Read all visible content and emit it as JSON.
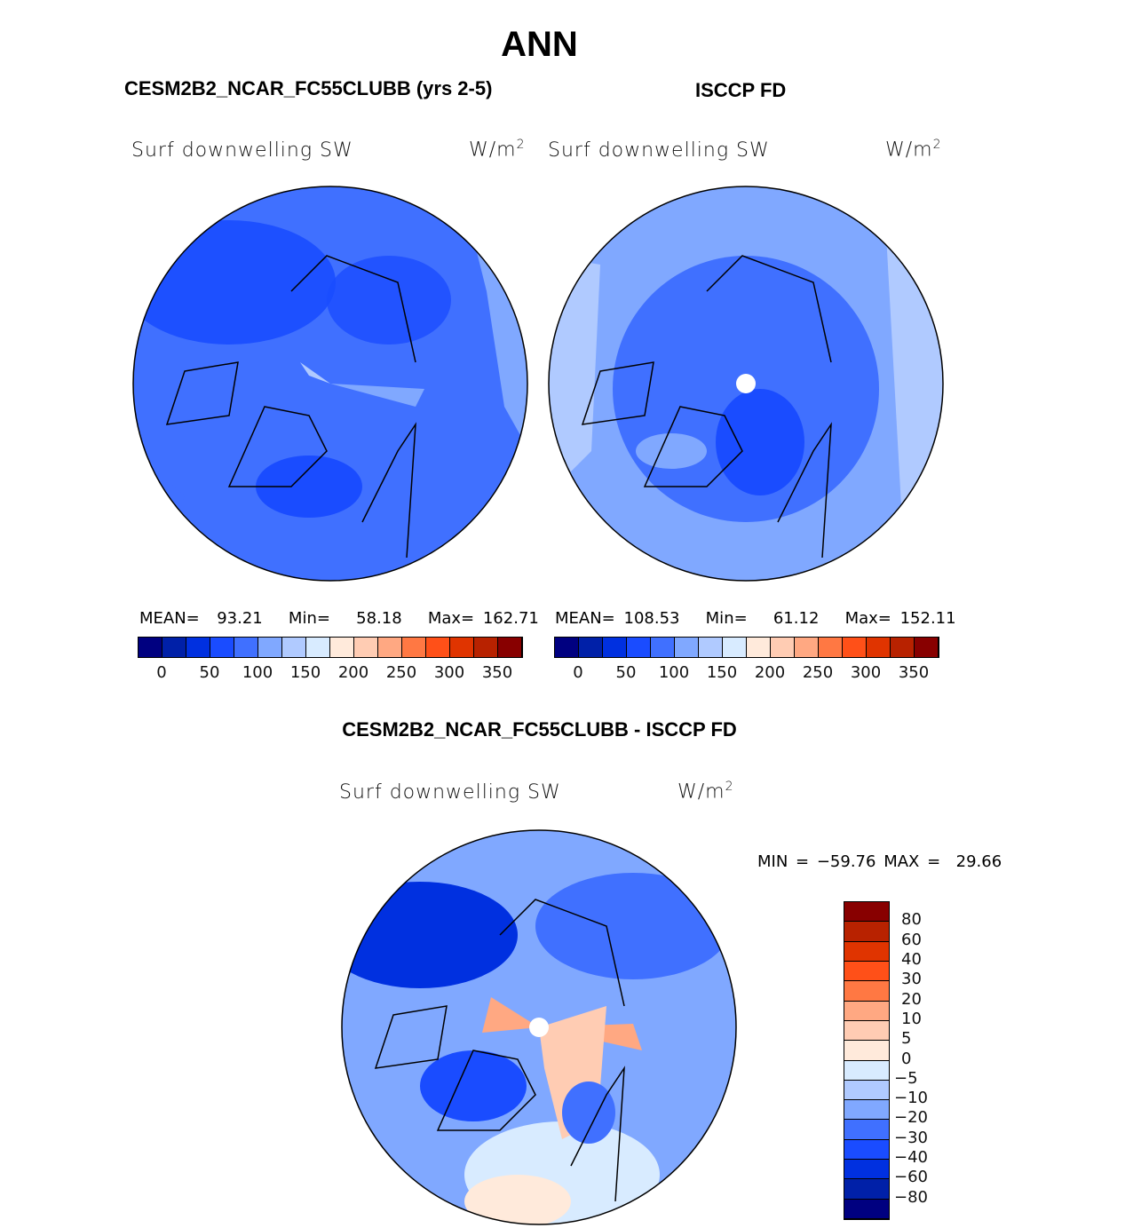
{
  "title": "ANN",
  "panels": [
    {
      "header": "CESM2B2_NCAR_FC55CLUBB (yrs 2-5)",
      "variable": "Surf downwelling SW",
      "units": "W/m",
      "units_sup": "2",
      "stats": {
        "mean_label": "MEAN=",
        "mean": "93.21",
        "min_label": "Min=",
        "min": "58.18",
        "max_label": "Max=",
        "max": "162.71"
      }
    },
    {
      "header": "ISCCP FD",
      "variable": "Surf downwelling SW",
      "units": "W/m",
      "units_sup": "2",
      "stats": {
        "mean_label": "MEAN=",
        "mean": "108.53",
        "min_label": "Min=",
        "min": "61.12",
        "max_label": "Max=",
        "max": "152.11"
      }
    },
    {
      "header": "CESM2B2_NCAR_FC55CLUBB - ISCCP FD",
      "variable": "Surf downwelling SW",
      "units": "W/m",
      "units_sup": "2",
      "stats": {
        "min_label": "MIN =",
        "min": "−59.76",
        "max_label": "MAX =",
        "max": "29.66"
      }
    }
  ],
  "colorbar_abs": {
    "labels": [
      "0",
      "50",
      "100",
      "150",
      "200",
      "250",
      "300",
      "350"
    ],
    "colors": [
      "#000080",
      "#0020a8",
      "#0030e0",
      "#1a4cff",
      "#4070ff",
      "#80a8ff",
      "#b0caff",
      "#d8ebff",
      "#ffeadb",
      "#ffccb3",
      "#ffa882",
      "#ff7843",
      "#ff5018",
      "#e03400",
      "#b82200",
      "#880000"
    ]
  },
  "colorbar_diff": {
    "labels": [
      "80",
      "60",
      "40",
      "30",
      "20",
      "10",
      "5",
      "0",
      "−5",
      "−10",
      "−20",
      "−30",
      "−40",
      "−60",
      "−80"
    ]
  },
  "colors": {
    "outline": "#000000",
    "background": "#ffffff"
  }
}
